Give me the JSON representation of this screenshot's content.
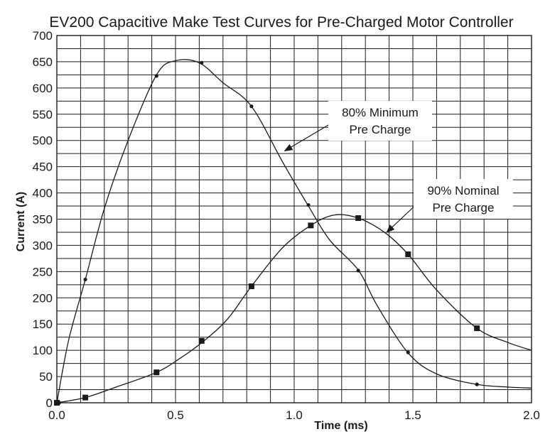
{
  "chart_data": {
    "type": "line",
    "title": "EV200 Capacitive Make Test Curves for Pre-Charged Motor Controller",
    "xlabel": "Time (ms)",
    "ylabel": "Current (A)",
    "xlim": [
      0,
      2.0
    ],
    "ylim": [
      0,
      700
    ],
    "x_ticks": [
      0.0,
      0.5,
      1.0,
      1.5,
      2.0
    ],
    "x_tick_labels": [
      "0.0",
      "0.5",
      "1.0",
      "1.5",
      "2.0"
    ],
    "y_ticks": [
      0,
      50,
      100,
      150,
      200,
      250,
      300,
      350,
      400,
      450,
      500,
      550,
      600,
      650,
      700
    ],
    "y_tick_labels": [
      "0",
      "50",
      "100",
      "150",
      "200",
      "250",
      "300",
      "350",
      "400",
      "450",
      "500",
      "550",
      "600",
      "650",
      "700"
    ],
    "grid": true,
    "series": [
      {
        "name": "80% Minimum Pre Charge",
        "marker": "circle",
        "x": [
          0,
          0.05,
          0.12,
          0.2,
          0.3,
          0.42,
          0.5,
          0.6,
          0.7,
          0.82,
          0.95,
          1.06,
          1.15,
          1.27,
          1.35,
          1.48,
          1.6,
          1.77,
          1.9,
          2.0
        ],
        "y": [
          0,
          120,
          235,
          370,
          500,
          625,
          652,
          648,
          610,
          565,
          460,
          375,
          310,
          253,
          185,
          95,
          55,
          35,
          30,
          28
        ]
      },
      {
        "name": "90% Nominal Pre Charge",
        "marker": "square",
        "x": [
          0,
          0.12,
          0.25,
          0.42,
          0.52,
          0.62,
          0.72,
          0.82,
          0.95,
          1.07,
          1.17,
          1.27,
          1.38,
          1.48,
          1.6,
          1.77,
          1.9,
          2.0
        ],
        "y": [
          0,
          10,
          30,
          58,
          85,
          118,
          160,
          222,
          295,
          338,
          358,
          352,
          325,
          283,
          215,
          142,
          115,
          100
        ]
      }
    ],
    "marker_points": [
      {
        "series": 0,
        "x": [
          0.01,
          0.12,
          0.42,
          0.61,
          0.82,
          1.06,
          1.27,
          1.48,
          1.77
        ],
        "y": [
          0,
          235,
          623,
          648,
          565,
          377,
          252,
          96,
          35
        ]
      },
      {
        "series": 1,
        "x": [
          0.0,
          0.12,
          0.42,
          0.61,
          0.82,
          1.07,
          1.27,
          1.48,
          1.77
        ],
        "y": [
          0,
          10,
          58,
          118,
          222,
          338,
          352,
          283,
          142
        ]
      }
    ],
    "annotations": [
      {
        "lines": [
          "80% Minimum",
          "Pre Charge"
        ],
        "series": 0,
        "arrow_to": [
          0.96,
          480
        ]
      },
      {
        "lines": [
          "90% Nominal",
          "Pre Charge"
        ],
        "series": 1,
        "arrow_to": [
          1.39,
          325
        ]
      }
    ]
  }
}
